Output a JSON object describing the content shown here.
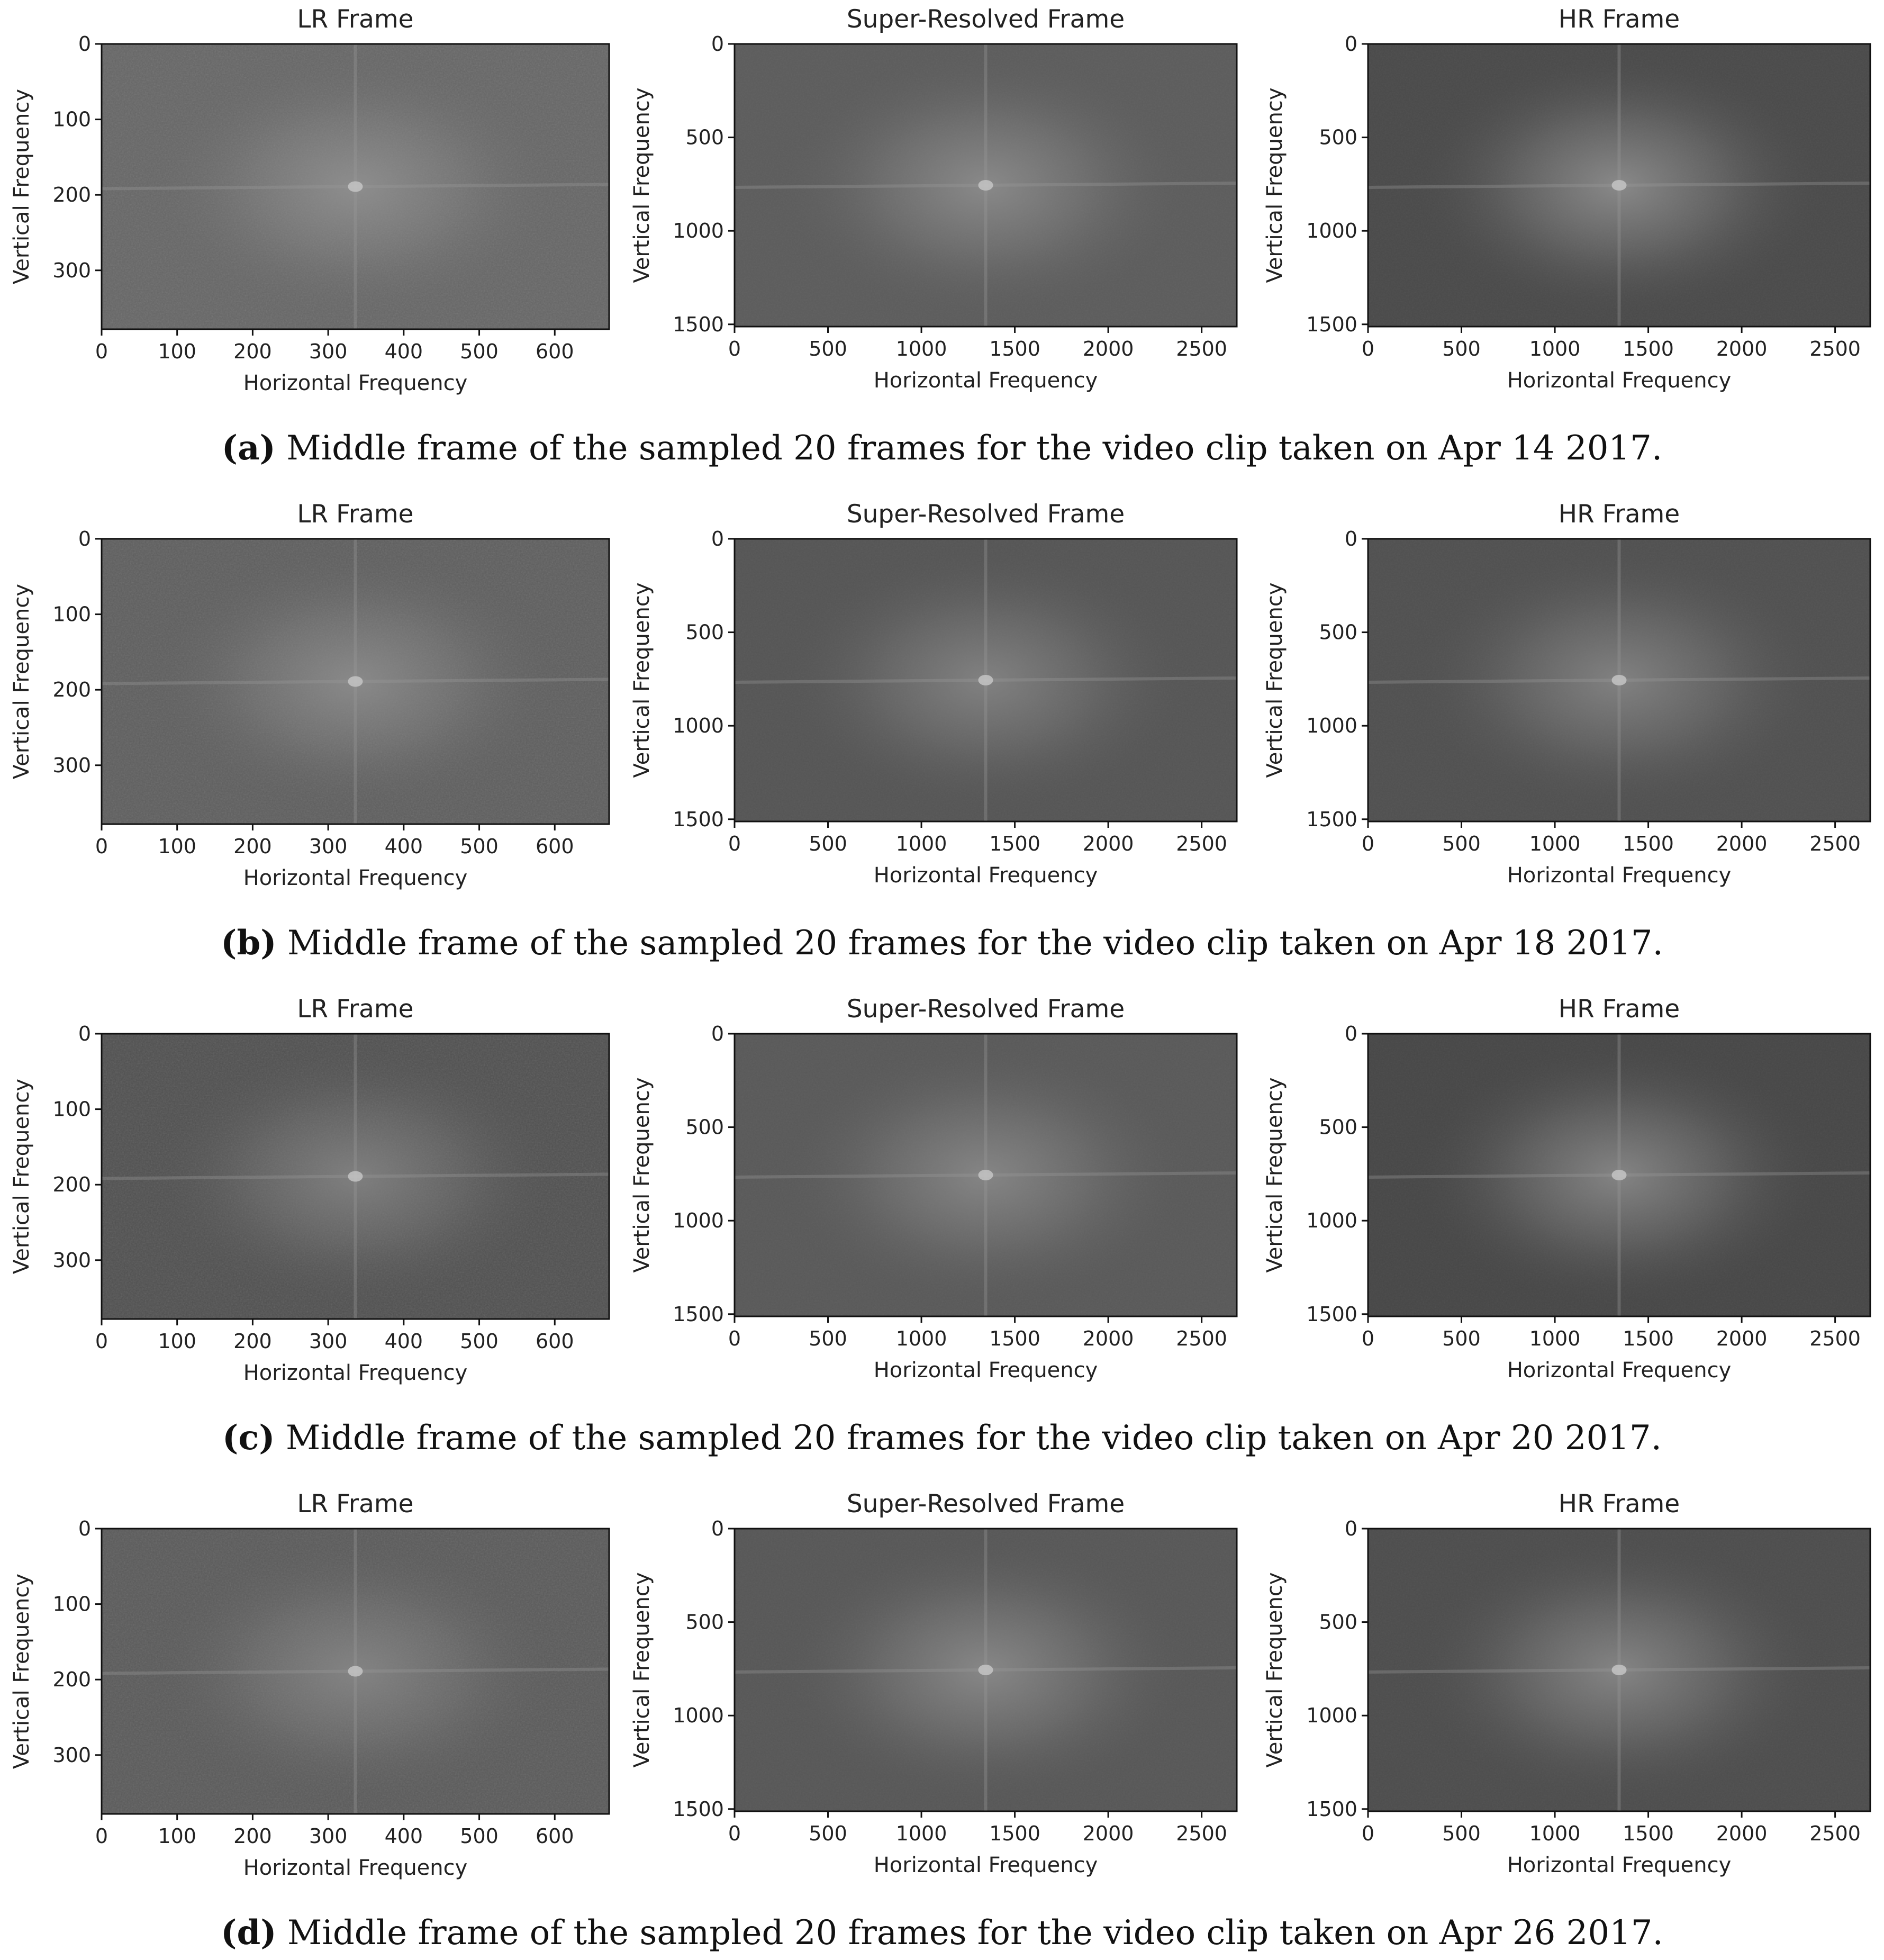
{
  "captions": [
    {
      "label": "(a)",
      "text": " Middle frame of the sampled 20 frames for the video clip taken on Apr 14 2017."
    },
    {
      "label": "(b)",
      "text": " Middle frame of the sampled 20 frames for the video clip taken on Apr 18 2017."
    },
    {
      "label": "(c)",
      "text": " Middle frame of the sampled 20 frames for the video clip taken on Apr 20 2017."
    },
    {
      "label": "(d)",
      "text": " Middle frame of the sampled 20 frames for the video clip taken on Apr 26 2017."
    }
  ],
  "chart_data": [
    {
      "type": "heatmap",
      "colormap": "gray",
      "title": "LR Frame",
      "xlabel": "Horizontal Frequency",
      "ylabel": "Vertical Frequency",
      "xlim": [
        0,
        672
      ],
      "ylim": [
        378,
        0
      ],
      "xticks": [
        "0",
        "100",
        "200",
        "300",
        "400",
        "500",
        "600"
      ],
      "yticks": [
        "0",
        "100",
        "200",
        "300"
      ],
      "center": [
        336,
        189
      ],
      "background_color": "#666666",
      "center_color": "#8e8e8e"
    },
    {
      "type": "heatmap",
      "colormap": "gray",
      "title": "Super-Resolved Frame",
      "xlabel": "Horizontal Frequency",
      "ylabel": "Vertical Frequency",
      "xlim": [
        0,
        2688
      ],
      "ylim": [
        1512,
        0
      ],
      "xticks": [
        "0",
        "500",
        "1000",
        "1500",
        "2000",
        "2500"
      ],
      "yticks": [
        "0",
        "500",
        "1000",
        "1500"
      ],
      "center": [
        1344,
        756
      ],
      "background_color": "#5c5c5c",
      "center_color": "#8a8a8a"
    },
    {
      "type": "heatmap",
      "colormap": "gray",
      "title": "HR Frame",
      "xlabel": "Horizontal Frequency",
      "ylabel": "Vertical Frequency",
      "xlim": [
        0,
        2688
      ],
      "ylim": [
        1512,
        0
      ],
      "xticks": [
        "0",
        "500",
        "1000",
        "1500",
        "2000",
        "2500"
      ],
      "yticks": [
        "0",
        "500",
        "1000",
        "1500"
      ],
      "center": [
        1344,
        756
      ],
      "background_color": "#4a4a4a",
      "center_color": "#8a8a8a"
    },
    {
      "type": "heatmap",
      "colormap": "gray",
      "title": "LR Frame",
      "xlabel": "Horizontal Frequency",
      "ylabel": "Vertical Frequency",
      "xlim": [
        0,
        672
      ],
      "ylim": [
        378,
        0
      ],
      "xticks": [
        "0",
        "100",
        "200",
        "300",
        "400",
        "500",
        "600"
      ],
      "yticks": [
        "0",
        "100",
        "200",
        "300"
      ],
      "center": [
        336,
        189
      ],
      "background_color": "#5e5e5e",
      "center_color": "#8a8a8a"
    },
    {
      "type": "heatmap",
      "colormap": "gray",
      "title": "Super-Resolved Frame",
      "xlabel": "Horizontal Frequency",
      "ylabel": "Vertical Frequency",
      "xlim": [
        0,
        2688
      ],
      "ylim": [
        1512,
        0
      ],
      "xticks": [
        "0",
        "500",
        "1000",
        "1500",
        "2000",
        "2500"
      ],
      "yticks": [
        "0",
        "500",
        "1000",
        "1500"
      ],
      "center": [
        1344,
        756
      ],
      "background_color": "#555555",
      "center_color": "#828282"
    },
    {
      "type": "heatmap",
      "colormap": "gray",
      "title": "HR Frame",
      "xlabel": "Horizontal Frequency",
      "ylabel": "Vertical Frequency",
      "xlim": [
        0,
        2688
      ],
      "ylim": [
        1512,
        0
      ],
      "xticks": [
        "0",
        "500",
        "1000",
        "1500",
        "2000",
        "2500"
      ],
      "yticks": [
        "0",
        "500",
        "1000",
        "1500"
      ],
      "center": [
        1344,
        756
      ],
      "background_color": "#505050",
      "center_color": "#828282"
    },
    {
      "type": "heatmap",
      "colormap": "gray",
      "title": "LR Frame",
      "xlabel": "Horizontal Frequency",
      "ylabel": "Vertical Frequency",
      "xlim": [
        0,
        672
      ],
      "ylim": [
        378,
        0
      ],
      "xticks": [
        "0",
        "100",
        "200",
        "300",
        "400",
        "500",
        "600"
      ],
      "yticks": [
        "0",
        "100",
        "200",
        "300"
      ],
      "center": [
        336,
        189
      ],
      "background_color": "#505050",
      "center_color": "#808080"
    },
    {
      "type": "heatmap",
      "colormap": "gray",
      "title": "Super-Resolved Frame",
      "xlabel": "Horizontal Frequency",
      "ylabel": "Vertical Frequency",
      "xlim": [
        0,
        2688
      ],
      "ylim": [
        1512,
        0
      ],
      "xticks": [
        "0",
        "500",
        "1000",
        "1500",
        "2000",
        "2500"
      ],
      "yticks": [
        "0",
        "500",
        "1000",
        "1500"
      ],
      "center": [
        1344,
        756
      ],
      "background_color": "#595959",
      "center_color": "#868686"
    },
    {
      "type": "heatmap",
      "colormap": "gray",
      "title": "HR Frame",
      "xlabel": "Horizontal Frequency",
      "ylabel": "Vertical Frequency",
      "xlim": [
        0,
        2688
      ],
      "ylim": [
        1512,
        0
      ],
      "xticks": [
        "0",
        "500",
        "1000",
        "1500",
        "2000",
        "2500"
      ],
      "yticks": [
        "0",
        "500",
        "1000",
        "1500"
      ],
      "center": [
        1344,
        756
      ],
      "background_color": "#474747",
      "center_color": "#858585"
    },
    {
      "type": "heatmap",
      "colormap": "gray",
      "title": "LR Frame",
      "xlabel": "Horizontal Frequency",
      "ylabel": "Vertical Frequency",
      "xlim": [
        0,
        672
      ],
      "ylim": [
        378,
        0
      ],
      "xticks": [
        "0",
        "100",
        "200",
        "300",
        "400",
        "500",
        "600"
      ],
      "yticks": [
        "0",
        "100",
        "200",
        "300"
      ],
      "center": [
        336,
        189
      ],
      "background_color": "#5a5a5a",
      "center_color": "#848484"
    },
    {
      "type": "heatmap",
      "colormap": "gray",
      "title": "Super-Resolved Frame",
      "xlabel": "Horizontal Frequency",
      "ylabel": "Vertical Frequency",
      "xlim": [
        0,
        2688
      ],
      "ylim": [
        1512,
        0
      ],
      "xticks": [
        "0",
        "500",
        "1000",
        "1500",
        "2000",
        "2500"
      ],
      "yticks": [
        "0",
        "500",
        "1000",
        "1500"
      ],
      "center": [
        1344,
        756
      ],
      "background_color": "#575757",
      "center_color": "#888888"
    },
    {
      "type": "heatmap",
      "colormap": "gray",
      "title": "HR Frame",
      "xlabel": "Horizontal Frequency",
      "ylabel": "Vertical Frequency",
      "xlim": [
        0,
        2688
      ],
      "ylim": [
        1512,
        0
      ],
      "xticks": [
        "0",
        "500",
        "1000",
        "1500",
        "2000",
        "2500"
      ],
      "yticks": [
        "0",
        "500",
        "1000",
        "1500"
      ],
      "center": [
        1344,
        756
      ],
      "background_color": "#4d4d4d",
      "center_color": "#858585"
    }
  ]
}
